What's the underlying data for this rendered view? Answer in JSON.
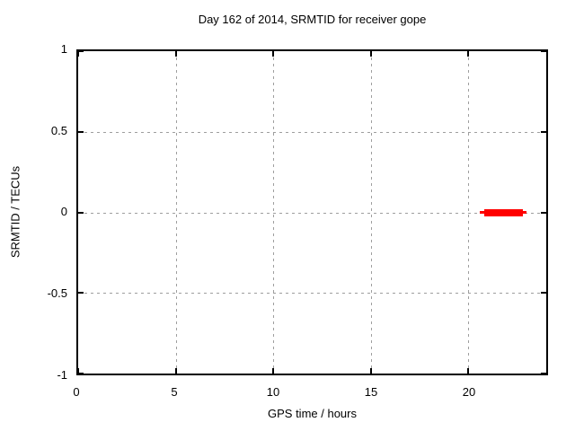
{
  "chart_data": {
    "type": "line",
    "title": "Day 162 of 2014, SRMTID for receiver gope",
    "xlabel": "GPS time / hours",
    "ylabel": "SRMTID / TECUs",
    "xlim": [
      0,
      24
    ],
    "ylim": [
      -1,
      1
    ],
    "xticks": [
      0,
      5,
      10,
      15,
      20
    ],
    "yticks": [
      1,
      0.5,
      0,
      -0.5,
      -1
    ],
    "xtick_labels": [
      "0",
      "5",
      "10",
      "15",
      "20"
    ],
    "ytick_labels": [
      "1",
      "0.5",
      "0",
      "-0.5",
      "-1"
    ],
    "grid": true,
    "grid_style": "dashed",
    "legend": "none",
    "series": [
      {
        "name": "SRMTID",
        "color": "#ff0000",
        "y_value": 0,
        "segments": [
          {
            "x_start": 20.6,
            "x_end": 23.0,
            "y": 0,
            "style": "thin"
          },
          {
            "x_start": 20.8,
            "x_end": 22.8,
            "y": 0,
            "style": "thick"
          }
        ]
      }
    ],
    "colors": {
      "series": "#ff0000",
      "grid": "#9e9e9e",
      "axis": "#000000",
      "text": "#000000",
      "background": "#ffffff"
    }
  }
}
